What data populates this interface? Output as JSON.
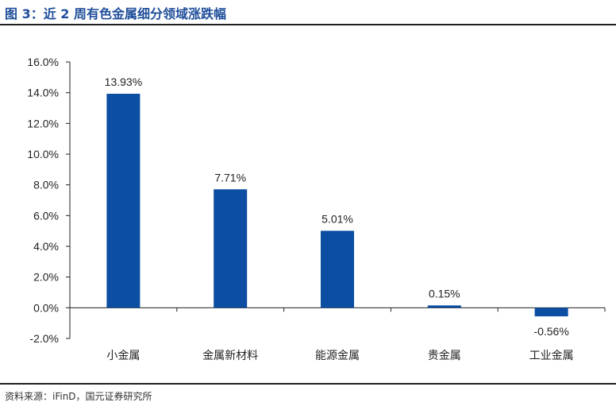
{
  "figure": {
    "title": "图 3：近 2 周有色金属细分领域涨跌幅",
    "source": "资料来源：iFinD，国元证券研究所"
  },
  "colors": {
    "bar": "#0b4ea2",
    "title": "#1f4e9a",
    "axis": "#222222"
  },
  "chart_data": {
    "type": "bar",
    "categories": [
      "小金属",
      "金属新材料",
      "能源金属",
      "贵金属",
      "工业金属"
    ],
    "values": [
      13.93,
      7.71,
      5.01,
      0.15,
      -0.56
    ],
    "data_labels": [
      "13.93%",
      "7.71%",
      "5.01%",
      "0.15%",
      "-0.56%"
    ],
    "unit": "%",
    "ylim": [
      -2,
      16
    ],
    "yticks": [
      -2,
      0,
      2,
      4,
      6,
      8,
      10,
      12,
      14,
      16
    ],
    "ytick_labels": [
      "-2.0%",
      "0.0%",
      "2.0%",
      "4.0%",
      "6.0%",
      "8.0%",
      "10.0%",
      "12.0%",
      "14.0%",
      "16.0%"
    ],
    "grid": false,
    "legend": "none"
  }
}
